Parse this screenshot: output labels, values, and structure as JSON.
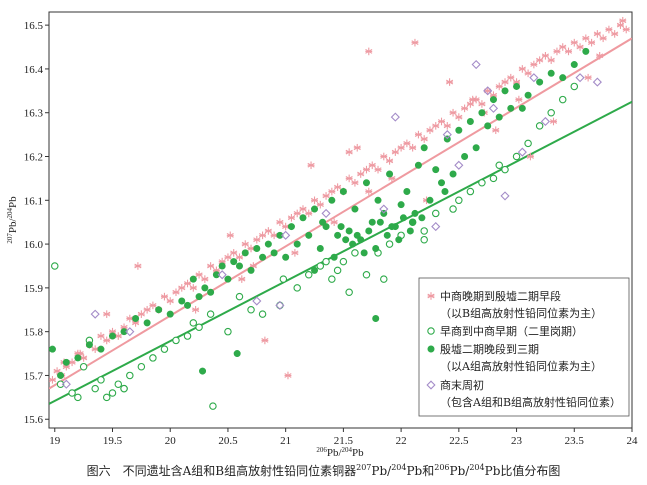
{
  "caption": {
    "pre": "图六　不同遗址含A组和B组高放射性铅同位素铜器",
    "sup1": "207",
    "mid1": "Pb/",
    "sup2": "204",
    "mid2": "Pb和",
    "sup3": "206",
    "mid3": "Pb/",
    "sup4": "204",
    "post": "Pb比值分布图"
  },
  "chart_data": {
    "type": "scatter",
    "title": "",
    "xlabel": {
      "sup1": "206",
      "base1": "Pb/",
      "sup2": "204",
      "base2": "Pb"
    },
    "ylabel": {
      "sup1": "207",
      "base1": "Pb/",
      "sup2": "204",
      "base2": "Pb"
    },
    "xlim": [
      18.95,
      24.0
    ],
    "ylim": [
      15.58,
      16.53
    ],
    "xticks": [
      "19",
      "19.5",
      "20",
      "20.5",
      "21",
      "21.5",
      "22",
      "22.5",
      "23",
      "23.5",
      "24"
    ],
    "yticks": [
      "15.6",
      "15.7",
      "15.8",
      "15.9",
      "16.0",
      "16.1",
      "16.2",
      "16.3",
      "16.4",
      "16.5"
    ],
    "grid": false,
    "legend_position": "bottom-right",
    "trendlines": [
      {
        "name": "A",
        "color": "#ef9aa0",
        "x": [
          18.95,
          24.0
        ],
        "y": [
          15.67,
          16.47
        ]
      },
      {
        "name": "B",
        "color": "#2eaa4a",
        "x": [
          18.95,
          24.0
        ],
        "y": [
          15.635,
          16.325
        ]
      }
    ],
    "series": [
      {
        "marker": "asterisk",
        "color": "#ee9aa2",
        "legend": [
          "中商晚期到殷墟二期早段",
          "（以B组高放射性铅同位素为主）"
        ],
        "x": [
          18.98,
          19.02,
          19.06,
          19.1,
          19.15,
          19.2,
          19.25,
          19.3,
          19.35,
          19.4,
          19.45,
          19.5,
          19.55,
          19.6,
          19.65,
          19.7,
          19.75,
          19.8,
          19.85,
          19.9,
          19.95,
          20.0,
          20.05,
          20.1,
          20.15,
          20.2,
          20.25,
          20.3,
          20.35,
          20.4,
          20.45,
          20.5,
          20.55,
          20.6,
          20.65,
          20.7,
          20.75,
          20.8,
          20.85,
          20.9,
          20.95,
          21.0,
          21.05,
          21.1,
          21.15,
          21.2,
          21.25,
          21.3,
          21.35,
          21.4,
          21.45,
          21.5,
          21.55,
          21.6,
          21.65,
          21.7,
          21.75,
          21.8,
          21.85,
          21.9,
          21.95,
          22.0,
          22.05,
          22.1,
          22.15,
          22.2,
          22.25,
          22.3,
          22.35,
          22.4,
          22.45,
          22.5,
          22.55,
          22.6,
          22.65,
          22.7,
          22.75,
          22.8,
          22.85,
          22.9,
          22.95,
          23.0,
          23.05,
          23.1,
          23.15,
          23.2,
          23.25,
          23.3,
          23.35,
          23.4,
          23.45,
          23.5,
          23.55,
          23.6,
          23.65,
          23.7,
          23.75,
          23.8,
          23.85,
          23.9,
          23.95,
          19.45,
          19.72,
          20.62,
          20.82,
          21.08,
          21.55,
          21.72,
          22.12,
          22.42,
          22.72,
          23.02,
          23.32,
          23.62,
          21.72,
          21.92,
          20.22,
          20.52,
          21.22,
          21.62,
          22.82,
          19.08,
          19.22,
          20.72,
          21.42,
          22.22,
          23.12,
          23.72,
          23.92,
          21.02,
          22.62
        ],
        "y": [
          15.69,
          15.71,
          15.7,
          15.72,
          15.73,
          15.75,
          15.74,
          15.77,
          15.76,
          15.79,
          15.78,
          15.8,
          15.79,
          15.81,
          15.83,
          15.82,
          15.84,
          15.85,
          15.86,
          15.85,
          15.88,
          15.87,
          15.89,
          15.9,
          15.91,
          15.9,
          15.93,
          15.92,
          15.95,
          15.94,
          15.96,
          15.97,
          15.98,
          15.97,
          16.0,
          15.99,
          16.01,
          16.02,
          16.03,
          16.02,
          16.05,
          16.04,
          16.06,
          16.07,
          16.08,
          16.07,
          16.1,
          16.09,
          16.11,
          16.12,
          16.13,
          16.12,
          16.15,
          16.14,
          16.16,
          16.17,
          16.18,
          16.17,
          16.2,
          16.19,
          16.21,
          16.22,
          16.23,
          16.22,
          16.25,
          16.24,
          16.26,
          16.27,
          16.28,
          16.27,
          16.3,
          16.29,
          16.31,
          16.32,
          16.33,
          16.32,
          16.35,
          16.34,
          16.36,
          16.37,
          16.38,
          16.37,
          16.4,
          16.39,
          16.41,
          16.42,
          16.43,
          16.42,
          16.44,
          16.45,
          16.44,
          16.46,
          16.45,
          16.47,
          16.46,
          16.48,
          16.47,
          16.49,
          16.48,
          16.5,
          16.49,
          15.84,
          15.95,
          15.92,
          15.78,
          15.98,
          16.21,
          16.44,
          16.46,
          16.37,
          16.3,
          16.33,
          16.28,
          16.38,
          16.12,
          16.15,
          15.85,
          16.02,
          16.18,
          16.22,
          16.26,
          15.73,
          15.75,
          15.95,
          16.05,
          16.1,
          16.2,
          16.43,
          16.51,
          15.7,
          16.33
        ]
      },
      {
        "marker": "open-circle",
        "color": "#2eaa4a",
        "legend": [
          "早商到中商早期（二里岗期）"
        ],
        "x": [
          19.0,
          19.05,
          19.15,
          19.2,
          19.25,
          19.35,
          19.4,
          19.45,
          19.5,
          19.55,
          19.6,
          19.65,
          19.75,
          19.85,
          19.95,
          20.05,
          20.15,
          20.25,
          20.35,
          20.5,
          20.6,
          20.7,
          20.8,
          20.95,
          21.1,
          21.2,
          21.3,
          21.4,
          21.5,
          21.55,
          21.6,
          21.7,
          21.8,
          21.9,
          22.0,
          22.1,
          22.2,
          22.3,
          22.45,
          22.5,
          22.6,
          22.7,
          22.8,
          22.85,
          22.9,
          23.0,
          23.1,
          23.2,
          23.3,
          23.4,
          23.5,
          19.3,
          19.6,
          20.2,
          20.37,
          21.85,
          22.2,
          20.98,
          21.45,
          21.35
        ],
        "y": [
          15.95,
          15.68,
          15.66,
          15.65,
          15.72,
          15.67,
          15.69,
          15.65,
          15.66,
          15.68,
          15.67,
          15.7,
          15.72,
          15.74,
          15.76,
          15.78,
          15.79,
          15.81,
          15.84,
          15.8,
          15.88,
          15.85,
          15.84,
          15.86,
          15.9,
          15.93,
          15.95,
          15.92,
          15.96,
          15.89,
          15.98,
          15.93,
          15.98,
          16.0,
          16.02,
          16.05,
          16.03,
          16.07,
          16.08,
          16.1,
          16.12,
          16.14,
          16.15,
          16.18,
          16.17,
          16.2,
          16.23,
          16.27,
          16.3,
          16.33,
          16.36,
          15.78,
          15.67,
          15.82,
          15.63,
          15.92,
          16.01,
          15.92,
          15.94,
          15.96
        ]
      },
      {
        "marker": "filled-circle",
        "color": "#2eaa4a",
        "legend": [
          "殷墟二期晚段到三期",
          "（以A组高放射性铅同位素为主）"
        ],
        "x": [
          18.98,
          19.05,
          19.1,
          19.2,
          19.3,
          19.4,
          19.5,
          19.6,
          19.7,
          19.8,
          19.9,
          20.0,
          20.1,
          20.15,
          20.2,
          20.25,
          20.3,
          20.35,
          20.4,
          20.45,
          20.5,
          20.55,
          20.6,
          20.65,
          20.7,
          20.75,
          20.8,
          20.85,
          20.9,
          20.95,
          21.0,
          21.05,
          21.1,
          21.15,
          21.2,
          21.25,
          21.3,
          21.35,
          21.4,
          21.45,
          21.5,
          21.55,
          21.6,
          21.65,
          21.7,
          21.75,
          21.8,
          21.85,
          21.9,
          21.95,
          22.0,
          22.05,
          22.1,
          22.15,
          22.2,
          22.25,
          22.3,
          22.35,
          22.4,
          22.45,
          22.5,
          22.55,
          22.6,
          22.65,
          22.7,
          22.75,
          22.8,
          22.85,
          22.9,
          22.95,
          23.0,
          23.1,
          23.2,
          23.3,
          23.4,
          23.5,
          23.6,
          21.52,
          21.62,
          21.72,
          21.82,
          21.92,
          22.02,
          22.12,
          21.88,
          21.98,
          22.08,
          21.58,
          21.68,
          21.78,
          21.42,
          20.28,
          20.58,
          21.78,
          23.05,
          22.18,
          21.48,
          21.32,
          21.25,
          22.38
        ],
        "y": [
          15.76,
          15.7,
          15.73,
          15.74,
          15.77,
          15.76,
          15.79,
          15.8,
          15.83,
          15.82,
          15.85,
          15.84,
          15.87,
          15.86,
          15.92,
          15.88,
          15.9,
          15.89,
          15.93,
          15.95,
          15.92,
          15.96,
          15.95,
          15.98,
          15.94,
          15.99,
          15.97,
          16.0,
          15.98,
          16.02,
          15.97,
          16.04,
          16.0,
          16.06,
          16.02,
          16.08,
          15.99,
          16.04,
          16.1,
          16.02,
          16.12,
          16.03,
          16.08,
          16.01,
          16.14,
          16.05,
          16.1,
          16.07,
          16.16,
          16.04,
          16.09,
          16.12,
          16.05,
          16.18,
          16.22,
          16.1,
          16.17,
          16.14,
          16.24,
          16.16,
          16.26,
          16.2,
          16.28,
          16.22,
          16.3,
          16.27,
          16.33,
          16.29,
          16.35,
          16.31,
          16.36,
          16.34,
          16.37,
          16.39,
          16.38,
          16.41,
          16.44,
          16.01,
          16.02,
          16.03,
          16.05,
          16.04,
          16.06,
          16.07,
          16.02,
          16.01,
          16.03,
          16.0,
          15.98,
          15.99,
          15.97,
          15.71,
          15.75,
          15.83,
          16.31,
          16.06,
          16.04,
          16.05,
          15.94,
          16.12
        ]
      },
      {
        "marker": "open-diamond",
        "color": "#a48cc8",
        "legend": [
          "商末周初",
          "（包含A组和B组高放射性铅同位素）"
        ],
        "x": [
          19.35,
          19.65,
          19.1,
          20.75,
          20.45,
          21.0,
          21.35,
          21.95,
          22.4,
          22.65,
          22.75,
          22.8,
          22.9,
          23.05,
          23.15,
          23.55,
          23.7,
          20.95,
          21.85,
          22.3,
          22.5,
          23.25
        ],
        "y": [
          15.84,
          15.8,
          15.68,
          15.87,
          15.93,
          16.02,
          16.07,
          16.29,
          16.25,
          16.41,
          16.35,
          16.31,
          16.11,
          16.21,
          16.38,
          16.38,
          16.37,
          15.86,
          16.08,
          16.04,
          16.18,
          16.28
        ]
      }
    ]
  }
}
